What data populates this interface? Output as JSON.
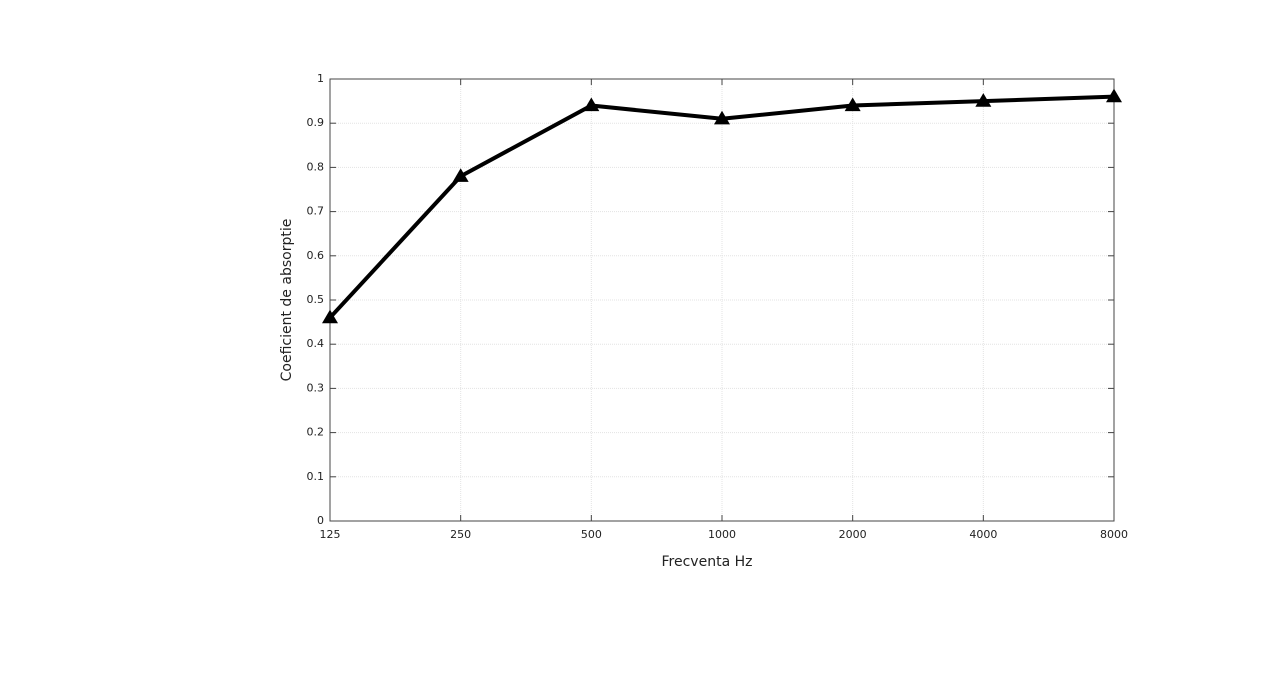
{
  "chart_data": {
    "type": "line",
    "x_label": "Frecventa Hz",
    "y_label": "Coeficient de absorptie",
    "categories": [
      "125",
      "250",
      "500",
      "1000",
      "2000",
      "4000",
      "8000"
    ],
    "values": [
      0.46,
      0.78,
      0.94,
      0.91,
      0.94,
      0.95,
      0.96
    ],
    "color": "#000000",
    "marker": "triangle",
    "ylim": [
      0,
      1
    ],
    "yticks": [
      0,
      0.1,
      0.2,
      0.3,
      0.4,
      0.5,
      0.6,
      0.7,
      0.8,
      0.9,
      1
    ],
    "grid": true
  }
}
